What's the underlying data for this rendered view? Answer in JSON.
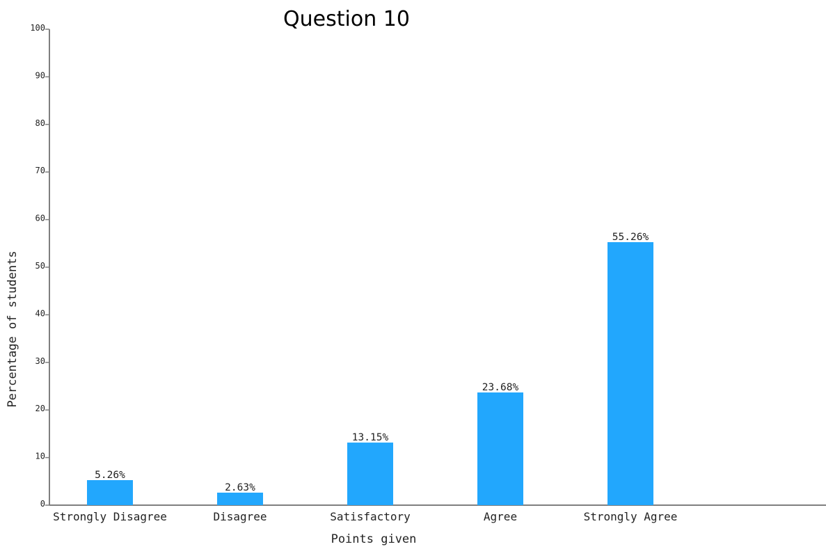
{
  "chart_data": {
    "type": "bar",
    "title": "Question 10",
    "xlabel": "Points given",
    "ylabel": "Percentage of students",
    "categories": [
      "Strongly Disagree",
      "Disagree",
      "Satisfactory",
      "Agree",
      "Strongly Agree"
    ],
    "values": [
      5.26,
      2.63,
      13.15,
      23.68,
      55.26
    ],
    "data_labels": [
      "5.26%",
      "2.63%",
      "13.15%",
      "23.68%",
      "55.26%"
    ],
    "ylim": [
      0,
      100
    ],
    "yticks": [
      0,
      10,
      20,
      30,
      40,
      50,
      60,
      70,
      80,
      90,
      100
    ],
    "grid": false,
    "legend": "none",
    "bar_color": "#22a7fd",
    "axis_color": "#7f7f7f"
  }
}
